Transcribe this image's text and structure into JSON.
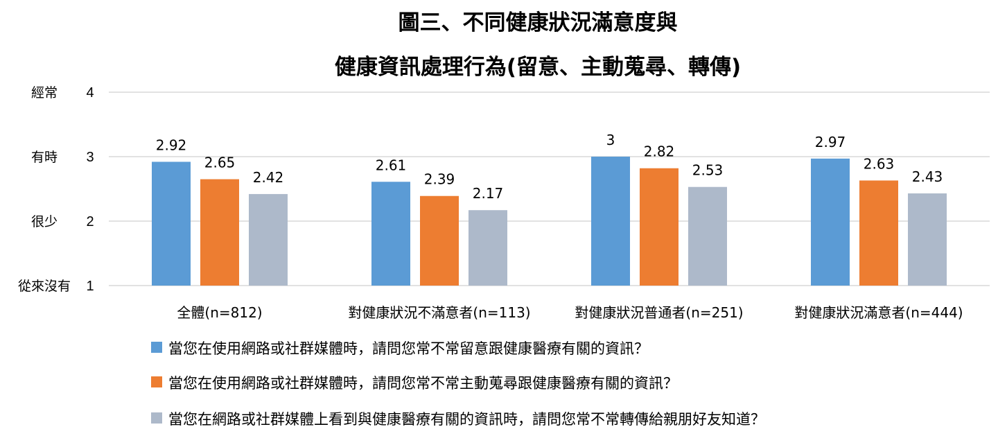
{
  "chart_data": {
    "type": "bar",
    "title": [
      "圖三、不同健康狀況滿意度與",
      "健康資訊處理行為(留意、主動蒐尋、轉傳)"
    ],
    "ylim": [
      1,
      4
    ],
    "yticks": [
      {
        "value": 4,
        "label": "4",
        "category_label": "經常"
      },
      {
        "value": 3,
        "label": "3",
        "category_label": "有時"
      },
      {
        "value": 2,
        "label": "2",
        "category_label": "很少"
      },
      {
        "value": 1,
        "label": "1",
        "category_label": "從來沒有"
      }
    ],
    "grid": true,
    "legend_position": "bottom-left",
    "categories": [
      "全體(n=812)",
      "對健康狀況不滿意者(n=113)",
      "對健康狀況普通者(n=251)",
      "對健康狀況滿意者(n=444)"
    ],
    "series": [
      {
        "name": "當您在使用網路或社群媒體時，請問您常不常留意跟健康醫療有關的資訊？",
        "color": "#5B9BD5",
        "values": [
          2.92,
          2.61,
          3,
          2.97
        ]
      },
      {
        "name": "當您在使用網路或社群媒體時，請問您常不常主動蒐尋跟健康醫療有關的資訊？",
        "color": "#ED7D31",
        "values": [
          2.65,
          2.39,
          2.82,
          2.63
        ]
      },
      {
        "name": "當您在網路或社群媒體上看到與健康醫療有關的資訊時，請問您常不常轉傳給親朋好友知道？",
        "color": "#ADB9CA",
        "values": [
          2.42,
          2.17,
          2.53,
          2.43
        ]
      }
    ]
  }
}
